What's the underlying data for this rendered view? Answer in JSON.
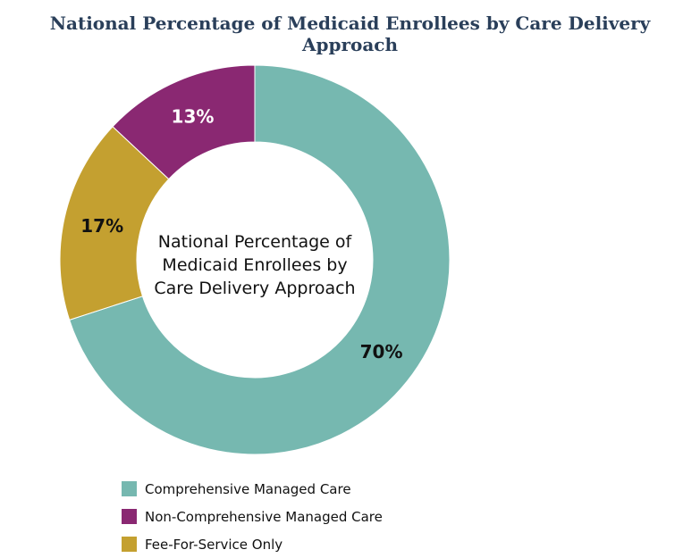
{
  "chart_data": {
    "type": "pie",
    "title": "National Percentage of Medicaid Enrollees by Care Delivery Approach",
    "center_label": "National Percentage of Medicaid Enrollees by Care Delivery Approach",
    "donut": true,
    "start": "12 o'clock",
    "direction": "clockwise",
    "legend_position": "bottom-left",
    "slices": [
      {
        "label": "Comprehensive Managed Care",
        "value": 70,
        "display": "70%",
        "color": "#76b8b0",
        "label_color": "#111111"
      },
      {
        "label": "Fee-For-Service Only",
        "value": 17,
        "display": "17%",
        "color": "#c4a030",
        "label_color": "#111111"
      },
      {
        "label": "Non-Comprehensive Managed Care",
        "value": 13,
        "display": "13%",
        "color": "#8a2872",
        "label_color": "#ffffff"
      }
    ],
    "legend": [
      {
        "label": "Comprehensive Managed Care",
        "color": "#76b8b0"
      },
      {
        "label": "Non-Comprehensive Managed Care",
        "color": "#8a2872"
      },
      {
        "label": "Fee-For-Service Only",
        "color": "#c4a030"
      }
    ]
  }
}
